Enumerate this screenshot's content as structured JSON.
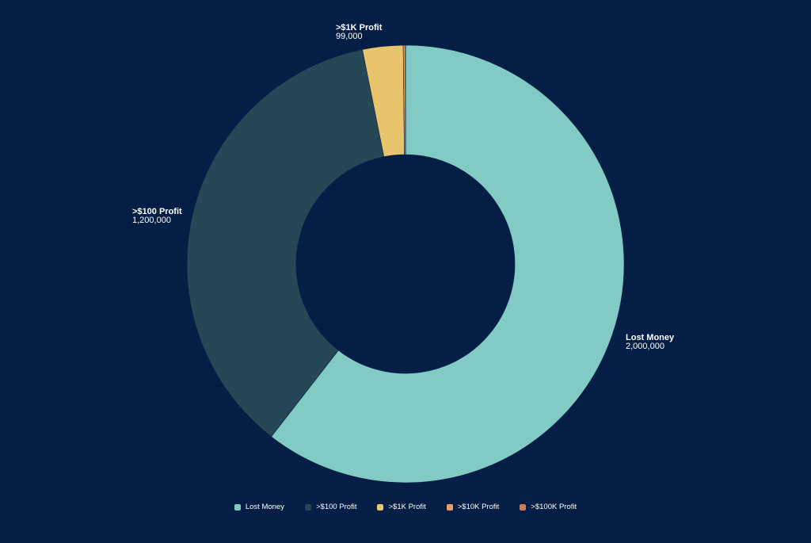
{
  "chart_data": {
    "type": "pie",
    "variant": "donut",
    "categories": [
      "Lost Money",
      ">$100 Profit",
      ">$1K Profit",
      ">$10K Profit",
      ">$100K Profit"
    ],
    "values": [
      2000000,
      1200000,
      99000,
      5000,
      500
    ],
    "value_labels": [
      "2,000,000",
      "1,200,000",
      "99,000",
      "",
      ""
    ],
    "colors": [
      "#81cbc4",
      "#254756",
      "#e8c56d",
      "#eca267",
      "#c8805d"
    ],
    "legend_position": "bottom",
    "background": "#041e45"
  }
}
